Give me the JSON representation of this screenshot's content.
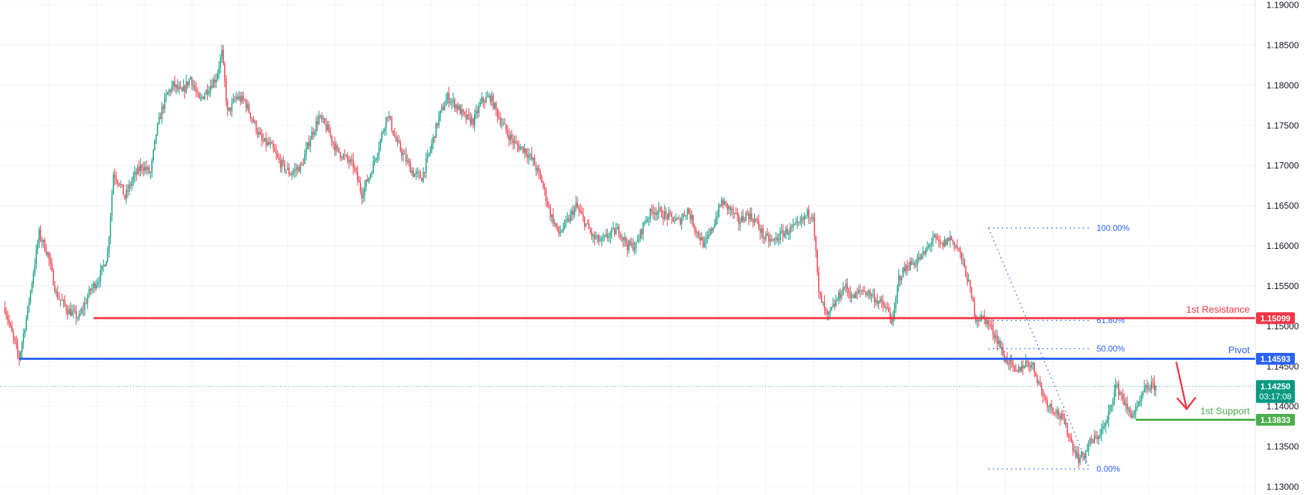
{
  "chart_data": {
    "type": "candlestick",
    "y_axis": {
      "ticks": [
        "1.19000",
        "1.18500",
        "1.18000",
        "1.17500",
        "1.17000",
        "1.16500",
        "1.16000",
        "1.15500",
        "1.15000",
        "1.14500",
        "1.14000",
        "1.13500",
        "1.13000"
      ],
      "ylim": [
        1.1295,
        1.19
      ],
      "position": "right"
    },
    "grid": true,
    "colors": {
      "up": "#089981",
      "down": "#f23645",
      "resistance": "#f23645",
      "pivot": "#2962ff",
      "support": "#4caf50",
      "fib": "#2962ff",
      "last": "#089981"
    },
    "levels": [
      {
        "label": "1st Resistance",
        "value": "1.15099",
        "price": 1.15099
      },
      {
        "label": "Pivot",
        "value": "1.14593",
        "price": 1.14593
      },
      {
        "label": "1st Support",
        "value": "1.13833",
        "price": 1.13833
      }
    ],
    "last_price": {
      "value": "1.14250",
      "price": 1.1425,
      "countdown": "03:17:08"
    },
    "fibonacci": [
      {
        "label": "100.00%",
        "price": 1.1622
      },
      {
        "label": "61.80%",
        "price": 1.1507
      },
      {
        "label": "50.00%",
        "price": 1.1472
      },
      {
        "label": "0.00%",
        "price": 1.1322
      }
    ],
    "path_points": [
      [
        0,
        1.1523
      ],
      [
        5,
        1.149
      ],
      [
        10,
        1.146
      ],
      [
        16,
        1.152
      ],
      [
        24,
        1.1615
      ],
      [
        30,
        1.159
      ],
      [
        36,
        1.154
      ],
      [
        44,
        1.152
      ],
      [
        52,
        1.151
      ],
      [
        60,
        1.1545
      ],
      [
        66,
        1.156
      ],
      [
        72,
        1.159
      ],
      [
        76,
        1.169
      ],
      [
        80,
        1.168
      ],
      [
        84,
        1.166
      ],
      [
        90,
        1.1685
      ],
      [
        96,
        1.17
      ],
      [
        102,
        1.169
      ],
      [
        106,
        1.174
      ],
      [
        110,
        1.177
      ],
      [
        114,
        1.179
      ],
      [
        118,
        1.18
      ],
      [
        124,
        1.179
      ],
      [
        130,
        1.181
      ],
      [
        136,
        1.178
      ],
      [
        142,
        1.1795
      ],
      [
        148,
        1.181
      ],
      [
        152,
        1.184
      ],
      [
        156,
        1.1765
      ],
      [
        162,
        1.1785
      ],
      [
        168,
        1.178
      ],
      [
        174,
        1.1755
      ],
      [
        180,
        1.173
      ],
      [
        186,
        1.1725
      ],
      [
        192,
        1.1705
      ],
      [
        200,
        1.169
      ],
      [
        208,
        1.17
      ],
      [
        214,
        1.1735
      ],
      [
        220,
        1.176
      ],
      [
        226,
        1.1745
      ],
      [
        232,
        1.172
      ],
      [
        238,
        1.171
      ],
      [
        244,
        1.17
      ],
      [
        250,
        1.1665
      ],
      [
        256,
        1.169
      ],
      [
        262,
        1.1725
      ],
      [
        268,
        1.1765
      ],
      [
        274,
        1.173
      ],
      [
        280,
        1.171
      ],
      [
        286,
        1.169
      ],
      [
        292,
        1.1685
      ],
      [
        298,
        1.172
      ],
      [
        304,
        1.176
      ],
      [
        310,
        1.1785
      ],
      [
        316,
        1.1775
      ],
      [
        322,
        1.176
      ],
      [
        328,
        1.1755
      ],
      [
        334,
        1.178
      ],
      [
        340,
        1.1785
      ],
      [
        346,
        1.176
      ],
      [
        352,
        1.174
      ],
      [
        358,
        1.1725
      ],
      [
        364,
        1.172
      ],
      [
        370,
        1.1705
      ],
      [
        376,
        1.168
      ],
      [
        382,
        1.164
      ],
      [
        388,
        1.1615
      ],
      [
        394,
        1.163
      ],
      [
        400,
        1.165
      ],
      [
        406,
        1.163
      ],
      [
        412,
        1.161
      ],
      [
        418,
        1.1605
      ],
      [
        424,
        1.1615
      ],
      [
        430,
        1.162
      ],
      [
        436,
        1.16
      ],
      [
        442,
        1.16
      ],
      [
        448,
        1.163
      ],
      [
        454,
        1.1645
      ],
      [
        460,
        1.164
      ],
      [
        466,
        1.1635
      ],
      [
        472,
        1.163
      ],
      [
        478,
        1.1645
      ],
      [
        484,
        1.162
      ],
      [
        490,
        1.16
      ],
      [
        496,
        1.1625
      ],
      [
        502,
        1.1655
      ],
      [
        508,
        1.1645
      ],
      [
        514,
        1.163
      ],
      [
        520,
        1.164
      ],
      [
        526,
        1.163
      ],
      [
        532,
        1.161
      ],
      [
        538,
        1.1605
      ],
      [
        544,
        1.1615
      ],
      [
        550,
        1.162
      ],
      [
        556,
        1.1625
      ],
      [
        562,
        1.164
      ],
      [
        566,
        1.164
      ],
      [
        570,
        1.154
      ],
      [
        576,
        1.151
      ],
      [
        582,
        1.153
      ],
      [
        588,
        1.155
      ],
      [
        594,
        1.1535
      ],
      [
        600,
        1.1545
      ],
      [
        606,
        1.154
      ],
      [
        612,
        1.153
      ],
      [
        618,
        1.152
      ],
      [
        622,
        1.1505
      ],
      [
        626,
        1.156
      ],
      [
        632,
        1.1575
      ],
      [
        638,
        1.158
      ],
      [
        644,
        1.159
      ],
      [
        650,
        1.161
      ],
      [
        656,
        1.16
      ],
      [
        662,
        1.161
      ],
      [
        668,
        1.1595
      ],
      [
        674,
        1.156
      ],
      [
        680,
        1.151
      ],
      [
        686,
        1.151
      ],
      [
        690,
        1.15
      ],
      [
        696,
        1.148
      ],
      [
        700,
        1.146
      ],
      [
        704,
        1.1455
      ],
      [
        708,
        1.144
      ],
      [
        712,
        1.145
      ],
      [
        716,
        1.1455
      ],
      [
        720,
        1.145
      ],
      [
        724,
        1.143
      ],
      [
        728,
        1.141
      ],
      [
        732,
        1.14
      ],
      [
        736,
        1.1395
      ],
      [
        740,
        1.1385
      ],
      [
        744,
        1.137
      ],
      [
        748,
        1.135
      ],
      [
        752,
        1.1335
      ],
      [
        756,
        1.134
      ],
      [
        760,
        1.1355
      ],
      [
        764,
        1.136
      ],
      [
        768,
        1.137
      ],
      [
        772,
        1.138
      ],
      [
        774,
        1.14
      ],
      [
        778,
        1.1425
      ],
      [
        782,
        1.1415
      ],
      [
        786,
        1.1395
      ],
      [
        790,
        1.139
      ],
      [
        794,
        1.14
      ],
      [
        798,
        1.142
      ],
      [
        802,
        1.1425
      ],
      [
        806,
        1.1425
      ]
    ]
  }
}
